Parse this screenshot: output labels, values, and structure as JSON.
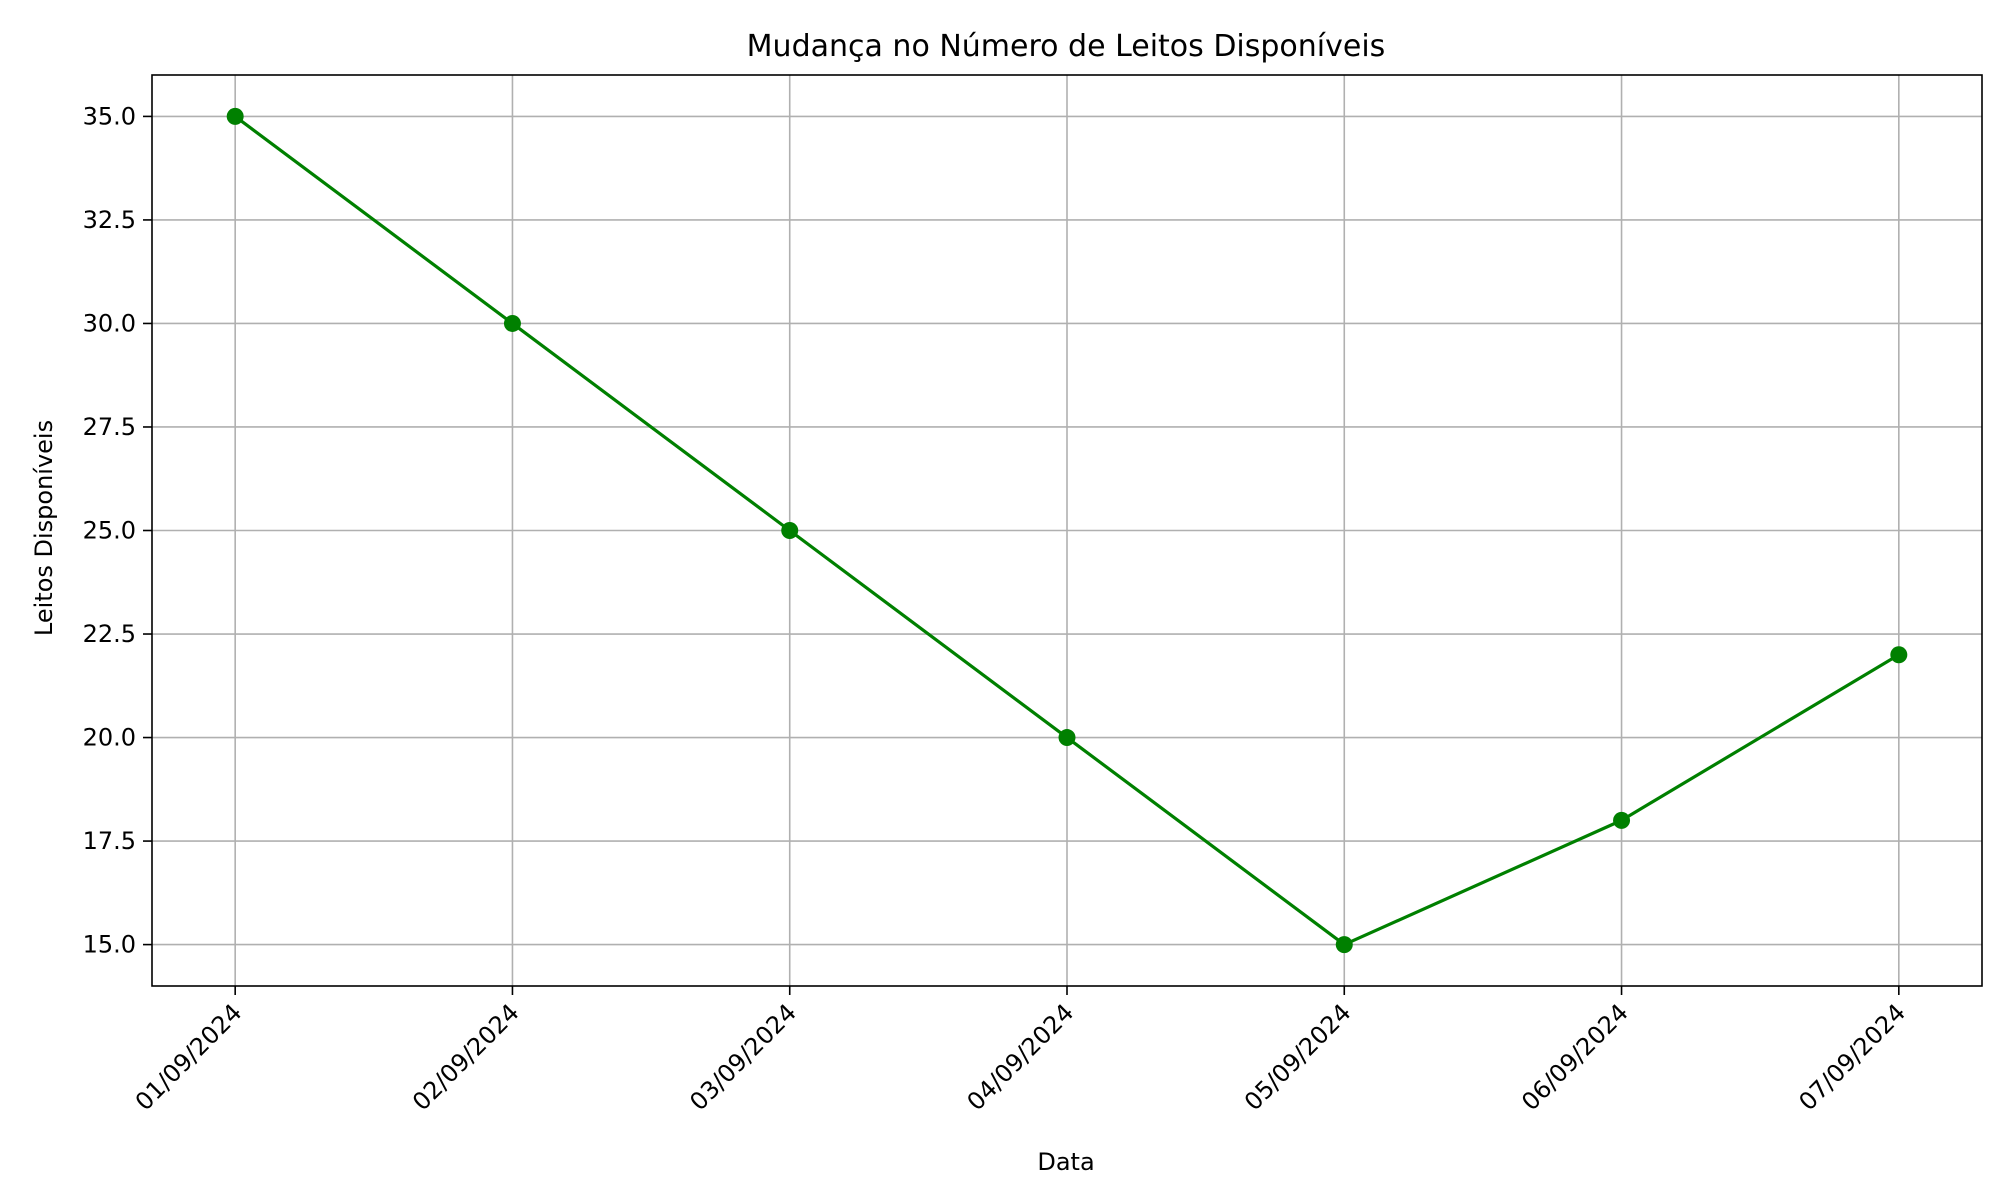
{
  "chart_data": {
    "type": "line",
    "title": "Mudança no Número de Leitos Disponíveis",
    "xlabel": "Data",
    "ylabel": "Leitos Disponíveis",
    "categories": [
      "01/09/2024",
      "02/09/2024",
      "03/09/2024",
      "04/09/2024",
      "05/09/2024",
      "06/09/2024",
      "07/09/2024"
    ],
    "series": [
      {
        "values": [
          35,
          30,
          25,
          20,
          15,
          18,
          22
        ],
        "color": "#008000",
        "marker": "circle"
      }
    ],
    "ylim": [
      14,
      36
    ],
    "yticks": [
      15.0,
      17.5,
      20.0,
      22.5,
      25.0,
      27.5,
      30.0,
      32.5,
      35.0
    ],
    "ytick_labels": [
      "15.0",
      "17.5",
      "20.0",
      "22.5",
      "25.0",
      "27.5",
      "30.0",
      "32.5",
      "35.0"
    ],
    "grid": true,
    "legend": "none",
    "xtick_rotation_deg": 45
  }
}
